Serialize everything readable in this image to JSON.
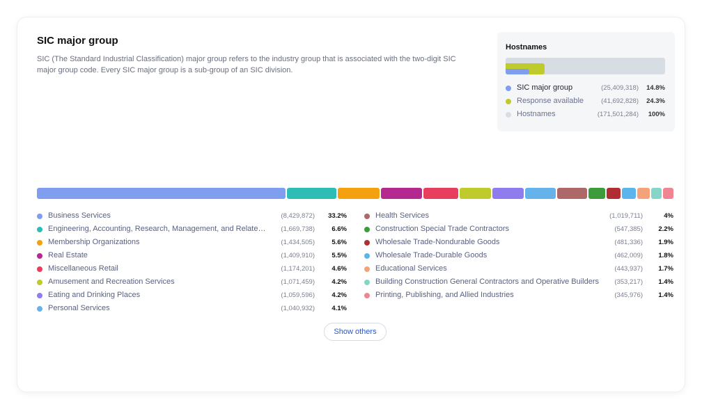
{
  "section": {
    "title": "SIC major group",
    "description": "SIC (The Standard Industrial Classification) major group refers to the industry group that is associated with the two-digit SIC major group code. Every SIC major group is a sub-group of an SIC division."
  },
  "hostnames": {
    "title": "Hostnames",
    "bar": {
      "sic_fraction": 0.148,
      "response_fraction": 0.243
    },
    "legend": [
      {
        "label": "SIC major group",
        "count": "(25,409,318)",
        "pct": "14.8%",
        "color": "#7f9ef0"
      },
      {
        "label": "Response available",
        "count": "(41,692,828)",
        "pct": "24.3%",
        "color": "#bfcb2a"
      },
      {
        "label": "Hostnames",
        "count": "(171,501,284)",
        "pct": "100%",
        "color": "#d8dce3"
      }
    ]
  },
  "groups": {
    "left": [
      {
        "label": "Business Services",
        "count": "(8,429,872)",
        "pct": "33.2%",
        "value": 33.2,
        "color": "#7f9ef0"
      },
      {
        "label": "Engineering, Accounting, Research, Management, and Related Services",
        "count": "(1,669,738)",
        "pct": "6.6%",
        "value": 6.6,
        "color": "#2dbdb6"
      },
      {
        "label": "Membership Organizations",
        "count": "(1,434,505)",
        "pct": "5.6%",
        "value": 5.6,
        "color": "#f5a00e"
      },
      {
        "label": "Real Estate",
        "count": "(1,409,910)",
        "pct": "5.5%",
        "value": 5.5,
        "color": "#b5288f"
      },
      {
        "label": "Miscellaneous Retail",
        "count": "(1,174,201)",
        "pct": "4.6%",
        "value": 4.6,
        "color": "#e83e5e"
      },
      {
        "label": "Amusement and Recreation Services",
        "count": "(1,071,459)",
        "pct": "4.2%",
        "value": 4.2,
        "color": "#bfcb2a"
      },
      {
        "label": "Eating and Drinking Places",
        "count": "(1,059,596)",
        "pct": "4.2%",
        "value": 4.2,
        "color": "#8f7df0"
      },
      {
        "label": "Personal Services",
        "count": "(1,040,932)",
        "pct": "4.1%",
        "value": 4.1,
        "color": "#66b2ea"
      }
    ],
    "right": [
      {
        "label": "Health Services",
        "count": "(1,019,711)",
        "pct": "4%",
        "value": 4.0,
        "color": "#ae6868"
      },
      {
        "label": "Construction Special Trade Contractors",
        "count": "(547,385)",
        "pct": "2.2%",
        "value": 2.2,
        "color": "#3e9b3c"
      },
      {
        "label": "Wholesale Trade-Nondurable Goods",
        "count": "(481,336)",
        "pct": "1.9%",
        "value": 1.9,
        "color": "#b22c34"
      },
      {
        "label": "Wholesale Trade-Durable Goods",
        "count": "(462,009)",
        "pct": "1.8%",
        "value": 1.8,
        "color": "#5cb4ec"
      },
      {
        "label": "Educational Services",
        "count": "(443,937)",
        "pct": "1.7%",
        "value": 1.7,
        "color": "#f4a27a"
      },
      {
        "label": "Building Construction General Contractors and Operative Builders",
        "count": "(353,217)",
        "pct": "1.4%",
        "value": 1.4,
        "color": "#85d6c7"
      },
      {
        "label": "Printing, Publishing, and Allied Industries",
        "count": "(345,976)",
        "pct": "1.4%",
        "value": 1.4,
        "color": "#f08492"
      }
    ]
  },
  "actions": {
    "show_others": "Show others"
  }
}
